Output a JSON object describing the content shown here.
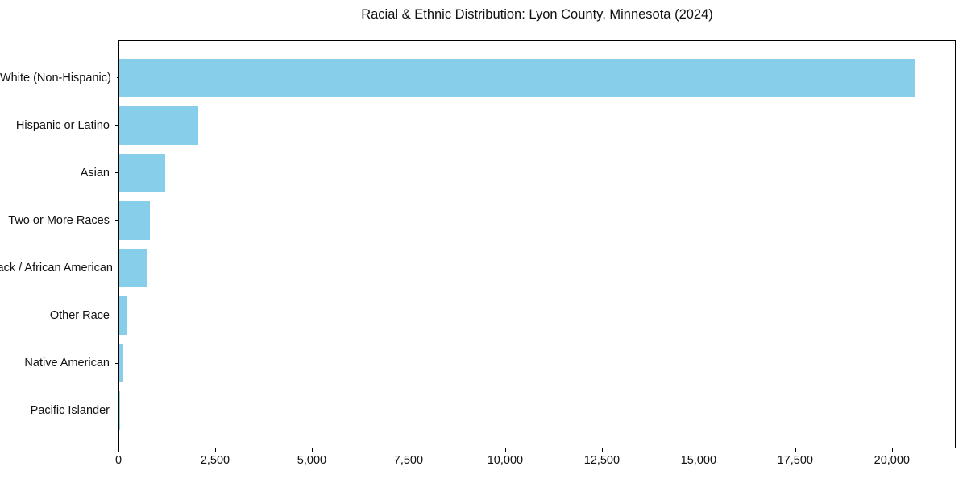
{
  "chart_data": {
    "type": "bar",
    "orientation": "horizontal",
    "title": "Racial & Ethnic Distribution: Lyon County, Minnesota (2024)",
    "categories": [
      "White (Non-Hispanic)",
      "Hispanic or Latino",
      "Asian",
      "Two or More Races",
      "Black / African American",
      "Other Race",
      "Native American",
      "Pacific Islander"
    ],
    "values": [
      20600,
      2050,
      1180,
      790,
      700,
      200,
      100,
      10
    ],
    "xlabel": "",
    "ylabel": "",
    "xlim": [
      0,
      21650
    ],
    "x_ticks": [
      {
        "value": 0,
        "label": "0"
      },
      {
        "value": 2500,
        "label": "2,500"
      },
      {
        "value": 5000,
        "label": "5,000"
      },
      {
        "value": 7500,
        "label": "7,500"
      },
      {
        "value": 10000,
        "label": "10,000"
      },
      {
        "value": 12500,
        "label": "12,500"
      },
      {
        "value": 15000,
        "label": "15,000"
      },
      {
        "value": 17500,
        "label": "17,500"
      },
      {
        "value": 20000,
        "label": "20,000"
      }
    ],
    "bar_color": "#87CEEB",
    "grid": false,
    "legend": null,
    "background_color": "#ffffff"
  }
}
